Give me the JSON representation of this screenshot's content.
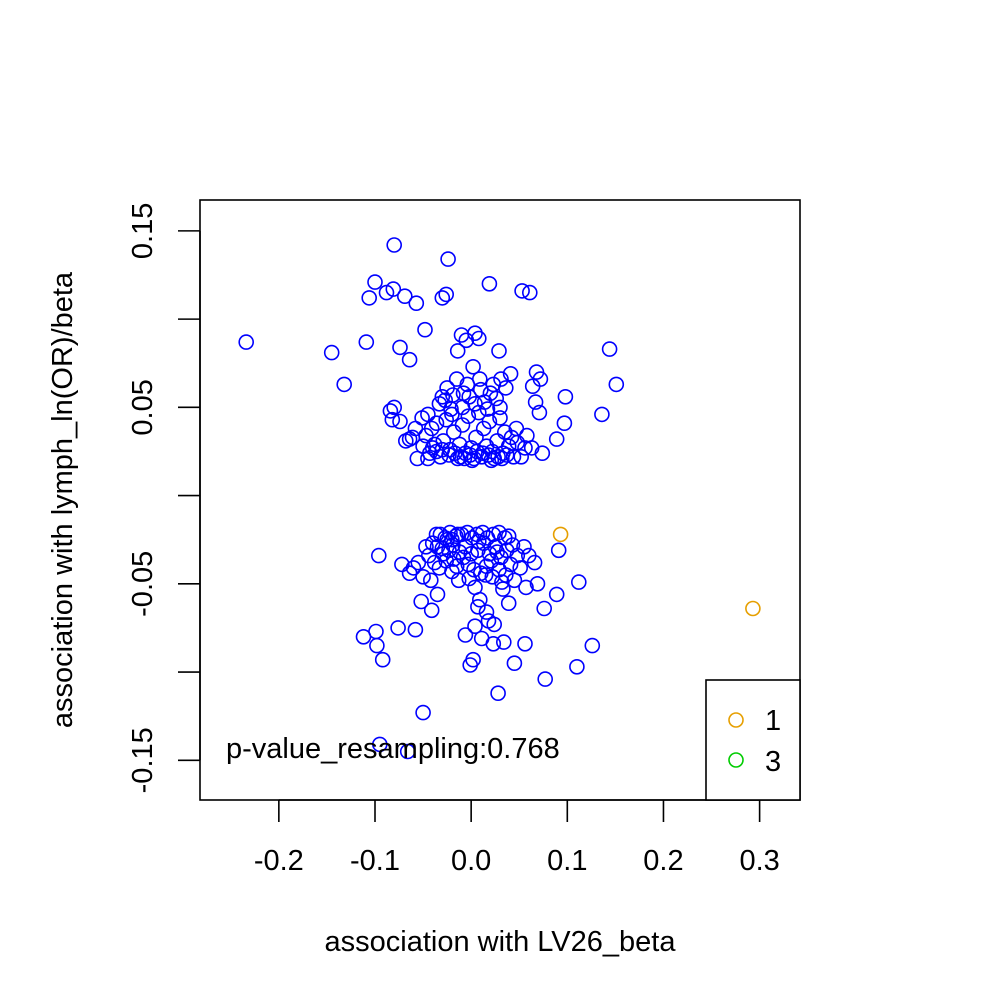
{
  "chart_data": {
    "type": "scatter",
    "title": "",
    "xlabel": "association with LV26_beta",
    "ylabel": "association with lymph_ln(OR)/beta",
    "xlim": [
      -0.282,
      0.342
    ],
    "ylim": [
      -0.1725,
      0.1675
    ],
    "xticks": [
      -0.2,
      -0.1,
      0.0,
      0.1,
      0.2,
      0.3
    ],
    "xtick_labels": [
      "-0.2",
      "-0.1",
      "0.0",
      "0.1",
      "0.2",
      "0.3"
    ],
    "yticks": [
      -0.15,
      -0.1,
      -0.05,
      0.0,
      0.05,
      0.1,
      0.15
    ],
    "ytick_labels": [
      "-0.15",
      "",
      "-0.05",
      "",
      "0.05",
      "",
      "0.15"
    ],
    "grid": false,
    "legend_position": "bottom-right",
    "annotation": "p-value_resampling:0.768",
    "legend": [
      {
        "label": "1",
        "color": "#E69F00"
      },
      {
        "label": "3",
        "color": "#00CC00"
      }
    ],
    "series": [
      {
        "color": "#0000FF",
        "marker": "open-circle",
        "points": [
          [
            -0.234,
            0.087
          ],
          [
            -0.145,
            0.081
          ],
          [
            -0.132,
            0.063
          ],
          [
            -0.109,
            0.087
          ],
          [
            -0.106,
            0.112
          ],
          [
            -0.1,
            0.121
          ],
          [
            -0.088,
            0.115
          ],
          [
            -0.081,
            0.117
          ],
          [
            -0.08,
            0.142
          ],
          [
            -0.074,
            0.084
          ],
          [
            -0.069,
            0.113
          ],
          [
            -0.064,
            0.077
          ],
          [
            -0.057,
            0.109
          ],
          [
            -0.048,
            0.094
          ],
          [
            -0.03,
            0.112
          ],
          [
            -0.026,
            0.114
          ],
          [
            -0.024,
            0.134
          ],
          [
            0.019,
            0.12
          ],
          [
            0.053,
            0.116
          ],
          [
            0.061,
            0.115
          ],
          [
            0.144,
            0.083
          ],
          [
            0.151,
            0.063
          ],
          [
            0.136,
            0.046
          ],
          [
            0.098,
            0.056
          ],
          [
            0.097,
            0.041
          ],
          [
            0.089,
            0.032
          ],
          [
            0.072,
            0.066
          ],
          [
            0.068,
            0.07
          ],
          [
            0.064,
            0.062
          ],
          [
            -0.01,
            0.091
          ],
          [
            -0.005,
            0.088
          ],
          [
            0.004,
            0.092
          ],
          [
            0.008,
            0.089
          ],
          [
            -0.014,
            0.082
          ],
          [
            0.029,
            0.082
          ],
          [
            -0.08,
            0.05
          ],
          [
            -0.084,
            0.048
          ],
          [
            -0.082,
            0.043
          ],
          [
            -0.074,
            0.042
          ],
          [
            -0.068,
            0.031
          ],
          [
            -0.064,
            0.032
          ],
          [
            -0.058,
            0.038
          ],
          [
            -0.051,
            0.044
          ],
          [
            -0.047,
            0.034
          ],
          [
            -0.043,
            0.024
          ],
          [
            -0.038,
            0.029
          ],
          [
            -0.033,
            0.052
          ],
          [
            -0.03,
            0.056
          ],
          [
            -0.025,
            0.061
          ],
          [
            -0.019,
            0.057
          ],
          [
            -0.015,
            0.066
          ],
          [
            -0.008,
            0.058
          ],
          [
            -0.004,
            0.063
          ],
          [
            0.002,
            0.073
          ],
          [
            0.009,
            0.066
          ],
          [
            0.014,
            0.053
          ],
          [
            0.02,
            0.058
          ],
          [
            0.026,
            0.055
          ],
          [
            0.031,
            0.066
          ],
          [
            0.036,
            0.061
          ],
          [
            0.041,
            0.069
          ],
          [
            0.047,
            0.038
          ],
          [
            0.052,
            0.022
          ],
          [
            0.058,
            0.034
          ],
          [
            0.063,
            0.027
          ],
          [
            0.067,
            0.053
          ],
          [
            0.071,
            0.047
          ],
          [
            0.074,
            0.024
          ],
          [
            -0.041,
            0.038
          ],
          [
            -0.036,
            0.041
          ],
          [
            -0.029,
            0.031
          ],
          [
            -0.022,
            0.026
          ],
          [
            -0.018,
            0.036
          ],
          [
            -0.012,
            0.029
          ],
          [
            -0.006,
            0.024
          ],
          [
            0.0,
            0.027
          ],
          [
            0.005,
            0.033
          ],
          [
            0.011,
            0.022
          ],
          [
            0.016,
            0.028
          ],
          [
            0.022,
            0.025
          ],
          [
            0.027,
            0.031
          ],
          [
            0.033,
            0.024
          ],
          [
            0.039,
            0.028
          ],
          [
            0.044,
            0.022
          ],
          [
            -0.032,
            0.022
          ],
          [
            -0.026,
            0.043
          ],
          [
            -0.02,
            0.046
          ],
          [
            -0.014,
            0.021
          ],
          [
            -0.009,
            0.04
          ],
          [
            -0.003,
            0.045
          ],
          [
            0.003,
            0.021
          ],
          [
            0.008,
            0.047
          ],
          [
            0.013,
            0.038
          ],
          [
            0.019,
            0.042
          ],
          [
            0.024,
            0.021
          ],
          [
            0.03,
            0.044
          ],
          [
            0.035,
            0.036
          ],
          [
            -0.045,
            0.021
          ],
          [
            -0.04,
            0.027
          ],
          [
            0.048,
            0.03
          ],
          [
            -0.023,
            0.023
          ],
          [
            -0.017,
            0.024
          ],
          [
            -0.011,
            0.022
          ],
          [
            -0.001,
            0.023
          ],
          [
            0.006,
            0.025
          ],
          [
            0.012,
            0.024
          ],
          [
            0.018,
            0.023
          ],
          [
            0.028,
            0.022
          ],
          [
            0.037,
            0.023
          ],
          [
            -0.036,
            0.025
          ],
          [
            -0.03,
            0.026
          ],
          [
            -0.007,
            0.021
          ],
          [
            0.001,
            0.02
          ],
          [
            0.021,
            0.02
          ],
          [
            0.032,
            0.021
          ],
          [
            -0.05,
            0.028
          ],
          [
            -0.056,
            0.021
          ],
          [
            0.056,
            0.027
          ],
          [
            -0.061,
            0.033
          ],
          [
            0.042,
            0.033
          ],
          [
            -0.009,
            0.05
          ],
          [
            0.004,
            0.052
          ],
          [
            0.017,
            0.049
          ],
          [
            -0.021,
            0.049
          ],
          [
            -0.027,
            0.054
          ],
          [
            0.03,
            0.05
          ],
          [
            -0.045,
            0.046
          ],
          [
            0.023,
            0.063
          ],
          [
            0.01,
            0.06
          ],
          [
            -0.002,
            0.056
          ],
          [
            -0.112,
            -0.08
          ],
          [
            -0.099,
            -0.077
          ],
          [
            -0.098,
            -0.085
          ],
          [
            -0.092,
            -0.093
          ],
          [
            -0.076,
            -0.075
          ],
          [
            -0.058,
            -0.076
          ],
          [
            -0.05,
            -0.123
          ],
          [
            -0.095,
            -0.141
          ],
          [
            -0.066,
            -0.145
          ],
          [
            -0.096,
            -0.034
          ],
          [
            -0.072,
            -0.039
          ],
          [
            -0.064,
            -0.044
          ],
          [
            -0.06,
            -0.041
          ],
          [
            -0.055,
            -0.038
          ],
          [
            -0.052,
            -0.06
          ],
          [
            -0.041,
            -0.065
          ],
          [
            -0.035,
            -0.056
          ],
          [
            -0.03,
            -0.03
          ],
          [
            -0.025,
            -0.025
          ],
          [
            -0.019,
            -0.028
          ],
          [
            -0.014,
            -0.022
          ],
          [
            -0.008,
            -0.035
          ],
          [
            -0.002,
            -0.047
          ],
          [
            0.004,
            -0.052
          ],
          [
            0.009,
            -0.059
          ],
          [
            0.015,
            -0.045
          ],
          [
            0.021,
            -0.037
          ],
          [
            0.027,
            -0.032
          ],
          [
            0.033,
            -0.053
          ],
          [
            0.039,
            -0.061
          ],
          [
            0.045,
            -0.048
          ],
          [
            0.051,
            -0.041
          ],
          [
            0.057,
            -0.052
          ],
          [
            0.069,
            -0.05
          ],
          [
            0.076,
            -0.064
          ],
          [
            0.089,
            -0.056
          ],
          [
            0.091,
            -0.031
          ],
          [
            0.112,
            -0.049
          ],
          [
            0.126,
            -0.085
          ],
          [
            0.11,
            -0.097
          ],
          [
            0.077,
            -0.104
          ],
          [
            0.045,
            -0.095
          ],
          [
            0.028,
            -0.112
          ],
          [
            0.002,
            -0.093
          ],
          [
            -0.001,
            -0.096
          ],
          [
            -0.006,
            -0.079
          ],
          [
            0.004,
            -0.074
          ],
          [
            0.011,
            -0.081
          ],
          [
            0.018,
            -0.071
          ],
          [
            0.024,
            -0.073
          ],
          [
            0.034,
            -0.083
          ],
          [
            0.056,
            -0.084
          ],
          [
            0.023,
            -0.084
          ],
          [
            0.016,
            -0.066
          ],
          [
            0.007,
            -0.063
          ],
          [
            -0.032,
            -0.022
          ],
          [
            -0.027,
            -0.024
          ],
          [
            -0.022,
            -0.021
          ],
          [
            -0.016,
            -0.023
          ],
          [
            -0.01,
            -0.022
          ],
          [
            -0.004,
            -0.021
          ],
          [
            0.001,
            -0.024
          ],
          [
            0.006,
            -0.022
          ],
          [
            0.012,
            -0.021
          ],
          [
            0.017,
            -0.024
          ],
          [
            0.023,
            -0.022
          ],
          [
            0.029,
            -0.021
          ],
          [
            0.035,
            -0.024
          ],
          [
            -0.04,
            -0.027
          ],
          [
            -0.035,
            -0.029
          ],
          [
            -0.029,
            -0.033
          ],
          [
            -0.023,
            -0.031
          ],
          [
            -0.018,
            -0.036
          ],
          [
            -0.012,
            -0.032
          ],
          [
            -0.006,
            -0.029
          ],
          [
            0.0,
            -0.033
          ],
          [
            0.007,
            -0.031
          ],
          [
            0.013,
            -0.027
          ],
          [
            0.019,
            -0.033
          ],
          [
            0.025,
            -0.029
          ],
          [
            0.031,
            -0.035
          ],
          [
            0.037,
            -0.031
          ],
          [
            0.043,
            -0.028
          ],
          [
            -0.044,
            -0.034
          ],
          [
            -0.038,
            -0.038
          ],
          [
            -0.033,
            -0.041
          ],
          [
            -0.026,
            -0.037
          ],
          [
            -0.02,
            -0.043
          ],
          [
            -0.015,
            -0.04
          ],
          [
            -0.003,
            -0.039
          ],
          [
            0.003,
            -0.042
          ],
          [
            0.01,
            -0.044
          ],
          [
            0.016,
            -0.04
          ],
          [
            0.022,
            -0.046
          ],
          [
            0.029,
            -0.042
          ],
          [
            0.036,
            -0.045
          ],
          [
            0.041,
            -0.039
          ],
          [
            0.048,
            -0.034
          ],
          [
            -0.047,
            -0.029
          ],
          [
            -0.05,
            -0.046
          ],
          [
            -0.042,
            -0.048
          ],
          [
            -0.013,
            -0.048
          ],
          [
            0.032,
            -0.049
          ],
          [
            0.06,
            -0.034
          ],
          [
            0.066,
            -0.038
          ],
          [
            0.055,
            -0.029
          ],
          [
            -0.036,
            -0.022
          ],
          [
            0.039,
            -0.023
          ],
          [
            -0.02,
            -0.025
          ],
          [
            0.008,
            -0.026
          ]
        ]
      },
      {
        "name": "1",
        "color": "#E69F00",
        "marker": "open-circle",
        "points": [
          [
            0.093,
            -0.022
          ],
          [
            0.293,
            -0.064
          ]
        ]
      }
    ]
  }
}
